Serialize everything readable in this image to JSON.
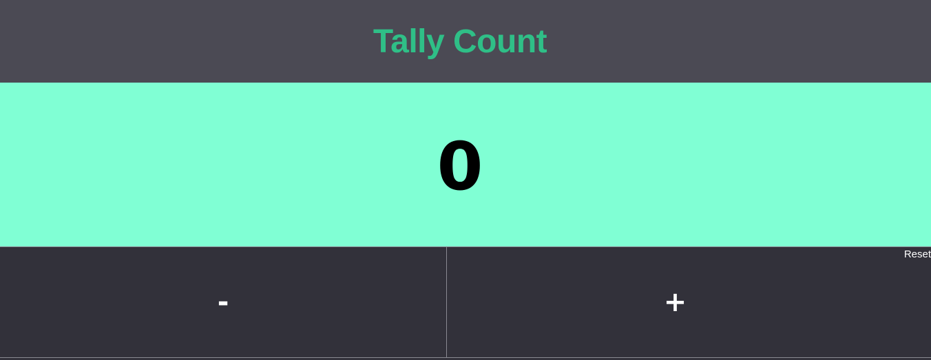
{
  "header": {
    "title": "Tally Count",
    "title_color": "#2fbf87",
    "background": "#4b4a54"
  },
  "display": {
    "count": "0",
    "background": "#80ffd4"
  },
  "controls": {
    "decrement_label": "-",
    "increment_label": "+",
    "reset_label": "Reset",
    "background": "#32313a"
  }
}
